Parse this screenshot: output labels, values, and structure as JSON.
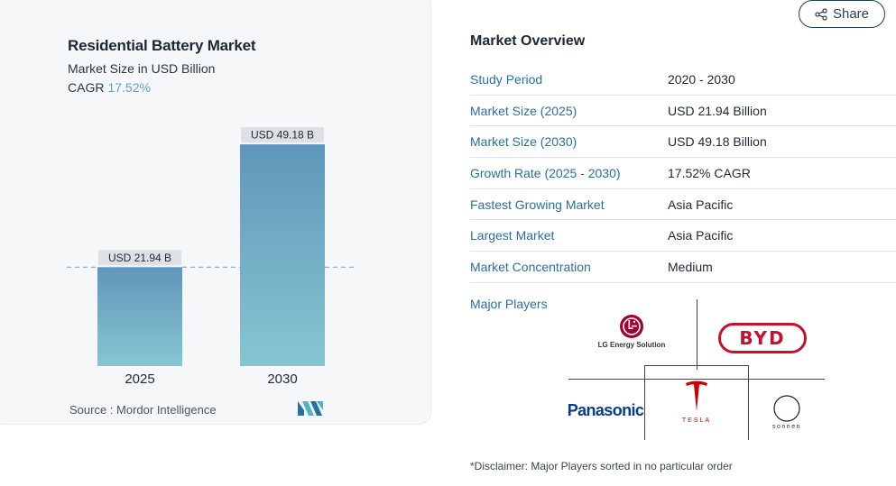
{
  "chart_data": {
    "type": "bar",
    "title": "Residential Battery Market",
    "subtitle": "Market Size in USD Billion",
    "cagr_label": "CAGR",
    "cagr_value": "17.52%",
    "categories": [
      "2025",
      "2030"
    ],
    "values": [
      21.94,
      49.18
    ],
    "data_labels": [
      "USD 21.94 B",
      "USD 49.18 B"
    ],
    "ylim": [
      0,
      55
    ],
    "grid": false,
    "reference_line": "dashed at 2025 value",
    "bar_colors": {
      "top": "#6096bb",
      "bottom": "#86c6d0"
    },
    "source": "Source :  Mordor Intelligence"
  },
  "share": {
    "label": "Share"
  },
  "overview": {
    "title": "Market Overview",
    "rows": [
      {
        "key": "Study Period",
        "value": "2020 - 2030"
      },
      {
        "key": "Market Size (2025)",
        "value": "USD 21.94 Billion"
      },
      {
        "key": "Market Size (2030)",
        "value": "USD 49.18 Billion"
      },
      {
        "key": "Growth Rate (2025 - 2030)",
        "value": "17.52% CAGR"
      },
      {
        "key": "Fastest Growing Market",
        "value": "Asia Pacific"
      },
      {
        "key": "Largest Market",
        "value": "Asia Pacific"
      },
      {
        "key": "Market Concentration",
        "value": "Medium"
      }
    ]
  },
  "major_players": {
    "label": "Major Players",
    "players": [
      "LG Energy Solution",
      "BYD",
      "Panasonic",
      "Tesla",
      "sonnen"
    ],
    "lg_text": "LG Energy Solution",
    "byd_text": "BYD",
    "panasonic_text": "Panasonic",
    "tesla_text": "TESLA",
    "sonnen_text": "sonnen"
  },
  "disclaimer": "*Disclaimer: Major Players sorted in no particular order",
  "colors": {
    "link": "#2a6fa0",
    "accent": "#5ea3c1",
    "lg": "#a50034",
    "byd": "#c8102e",
    "panasonic": "#0a3b8c",
    "tesla": "#cc0000"
  }
}
